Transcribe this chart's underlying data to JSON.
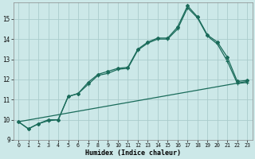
{
  "xlabel": "Humidex (Indice chaleur)",
  "xlim": [
    -0.5,
    23.5
  ],
  "ylim": [
    9.0,
    15.8
  ],
  "yticks": [
    9,
    10,
    11,
    12,
    13,
    14,
    15
  ],
  "xticks": [
    0,
    1,
    2,
    3,
    4,
    5,
    6,
    7,
    8,
    9,
    10,
    11,
    12,
    13,
    14,
    15,
    16,
    17,
    18,
    19,
    20,
    21,
    22,
    23
  ],
  "bg_color": "#cce8e8",
  "grid_color": "#aacccc",
  "line_color": "#1a6b5a",
  "line1_x": [
    0,
    1,
    2,
    3,
    4,
    5,
    6,
    7,
    8,
    9,
    10,
    11,
    12,
    13,
    14,
    15,
    16,
    17,
    18,
    19,
    20,
    21,
    22,
    23
  ],
  "line1_y": [
    9.9,
    9.55,
    9.8,
    10.0,
    10.0,
    11.15,
    11.3,
    11.85,
    12.25,
    12.4,
    12.55,
    12.6,
    13.5,
    13.85,
    14.05,
    14.05,
    14.6,
    15.65,
    15.1,
    14.2,
    13.85,
    13.1,
    11.9,
    11.95
  ],
  "line2_x": [
    0,
    1,
    2,
    3,
    4,
    5,
    6,
    7,
    8,
    9,
    10,
    11,
    12,
    13,
    14,
    15,
    16,
    17,
    18,
    19,
    20,
    21,
    22,
    23
  ],
  "line2_y": [
    9.9,
    9.55,
    9.8,
    9.95,
    10.0,
    11.15,
    11.3,
    11.75,
    12.2,
    12.3,
    12.5,
    12.55,
    13.45,
    13.8,
    14.0,
    14.0,
    14.5,
    15.55,
    15.05,
    14.15,
    13.75,
    12.9,
    11.8,
    11.85
  ],
  "line3_x": [
    0,
    23
  ],
  "line3_y": [
    9.9,
    11.9
  ]
}
